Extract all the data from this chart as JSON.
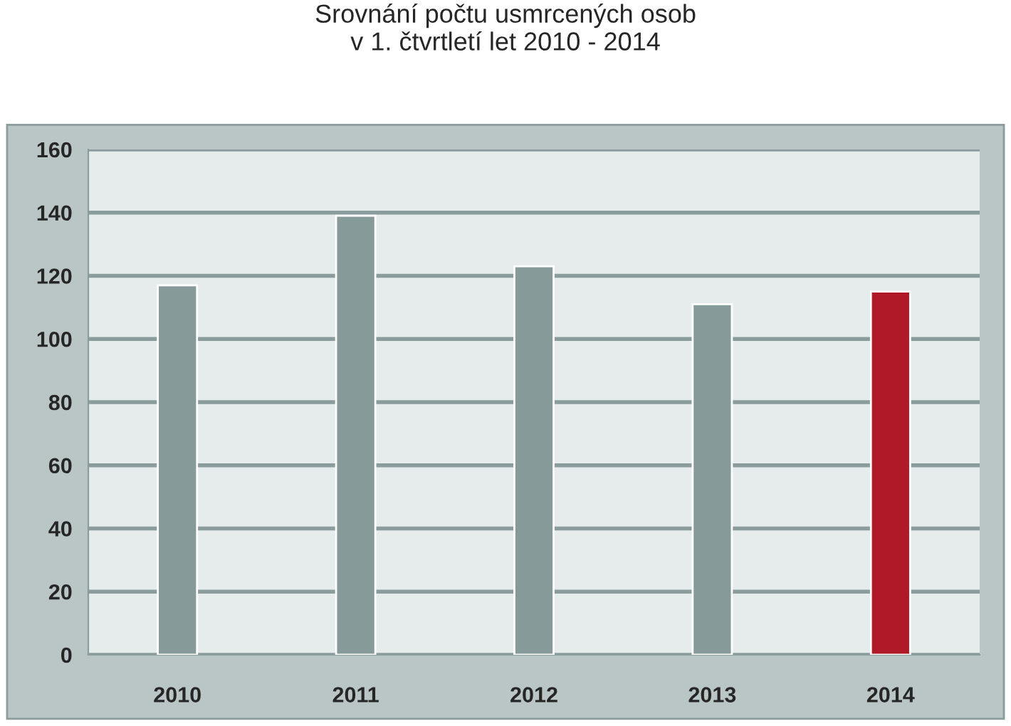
{
  "chart_data": {
    "type": "bar",
    "title": "Srovnání počtu usmrcených osob\nv 1. čtvrtletí let 2010 - 2014",
    "categories": [
      "2010",
      "2011",
      "2012",
      "2013",
      "2014"
    ],
    "values": [
      117,
      139,
      123,
      111,
      115
    ],
    "colors": [
      "#869a9a",
      "#869a9a",
      "#869a9a",
      "#869a9a",
      "#b01a28"
    ],
    "ylim": [
      0,
      160
    ],
    "yticks": [
      0,
      20,
      40,
      60,
      80,
      100,
      120,
      140,
      160
    ],
    "grid": "y"
  }
}
